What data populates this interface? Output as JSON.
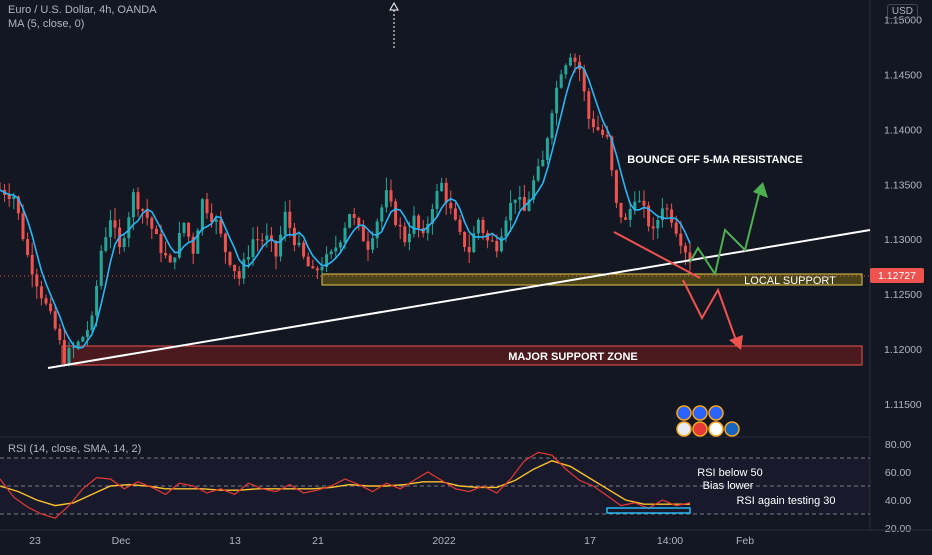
{
  "header": {
    "symbol_line": "Euro / U.S. Dollar, 4h, OANDA",
    "ma_line": "MA (5, close, 0)",
    "currency": "USD"
  },
  "rsi_header": "RSI (14, close, SMA, 14, 2)",
  "colors": {
    "bg": "#131722",
    "up": "#26a69a",
    "down": "#ef5350",
    "ma": "#29b6f6",
    "trendline": "#ffffff",
    "support_fill": "#4a1a1f",
    "support_stroke": "#ef5350",
    "local_fill": "#4a4318",
    "local_stroke": "#e6c84f",
    "rsi_line": "#e53935",
    "rsi_sma": "#fbc02d",
    "price_tag": "#ef5350",
    "arrow_up": "#4caf50",
    "arrow_down": "#ef5350"
  },
  "chart_data": [
    {
      "type": "candlestick",
      "title": "Euro / U.S. Dollar, 4h, OANDA",
      "ylim": [
        1.112,
        1.1515
      ],
      "y_ticks": [
        "1.15000",
        "1.14500",
        "1.14000",
        "1.13500",
        "1.13000",
        "1.12500",
        "1.12000",
        "1.11500"
      ],
      "x_ticks": [
        "23",
        "Dec",
        "13",
        "21",
        "2022",
        "17",
        "14:00",
        "Feb"
      ],
      "current_price": "1.12727",
      "series": [
        {
          "name": "MA (5, close, 0)",
          "style": "line"
        },
        {
          "name": "price",
          "close_path": [
            [
              0,
              1.1345
            ],
            [
              3,
              1.134
            ],
            [
              6,
              1.1285
            ],
            [
              9,
              1.125
            ],
            [
              12,
              1.1218
            ],
            [
              14,
              1.1192
            ],
            [
              17,
              1.1205
            ],
            [
              20,
              1.1225
            ],
            [
              22,
              1.129
            ],
            [
              24,
              1.132
            ],
            [
              26,
              1.129
            ],
            [
              29,
              1.134
            ],
            [
              32,
              1.132
            ],
            [
              34,
              1.13
            ],
            [
              37,
              1.1275
            ],
            [
              40,
              1.1315
            ],
            [
              42,
              1.129
            ],
            [
              44,
              1.1335
            ],
            [
              47,
              1.1315
            ],
            [
              49,
              1.129
            ],
            [
              52,
              1.1265
            ],
            [
              55,
              1.13
            ],
            [
              58,
              1.13
            ],
            [
              60,
              1.1285
            ],
            [
              62,
              1.1322
            ],
            [
              64,
              1.13
            ],
            [
              66,
              1.1282
            ],
            [
              68,
              1.1268
            ],
            [
              70,
              1.1278
            ],
            [
              72,
              1.1285
            ],
            [
              74,
              1.1302
            ],
            [
              76,
              1.1325
            ],
            [
              78,
              1.1308
            ],
            [
              80,
              1.1295
            ],
            [
              82,
              1.1318
            ],
            [
              84,
              1.134
            ],
            [
              86,
              1.1318
            ],
            [
              88,
              1.13
            ],
            [
              90,
              1.1318
            ],
            [
              92,
              1.13
            ],
            [
              94,
              1.1332
            ],
            [
              96,
              1.135
            ],
            [
              98,
              1.1325
            ],
            [
              100,
              1.1302
            ],
            [
              102,
              1.129
            ],
            [
              104,
              1.1318
            ],
            [
              106,
              1.1298
            ],
            [
              108,
              1.1295
            ],
            [
              110,
              1.1322
            ],
            [
              112,
              1.134
            ],
            [
              114,
              1.1325
            ],
            [
              116,
              1.1352
            ],
            [
              118,
              1.137
            ],
            [
              120,
              1.142
            ],
            [
              122,
              1.1455
            ],
            [
              124,
              1.147
            ],
            [
              126,
              1.1455
            ],
            [
              128,
              1.141
            ],
            [
              130,
              1.14
            ],
            [
              132,
              1.139
            ],
            [
              134,
              1.133
            ],
            [
              136,
              1.1315
            ],
            [
              138,
              1.134
            ],
            [
              140,
              1.1325
            ],
            [
              142,
              1.1305
            ],
            [
              144,
              1.1332
            ],
            [
              146,
              1.132
            ],
            [
              148,
              1.13
            ],
            [
              150,
              1.1282
            ]
          ]
        }
      ]
    },
    {
      "type": "line",
      "title": "RSI (14, close, SMA, 14, 2)",
      "ylim": [
        20,
        80
      ],
      "y_ticks": [
        "80.00",
        "60.00",
        "40.00",
        "20.00"
      ],
      "levels": [
        70,
        50,
        30
      ],
      "series": [
        {
          "name": "RSI",
          "values": [
            [
              0,
              55
            ],
            [
              3,
              42
            ],
            [
              6,
              35
            ],
            [
              9,
              30
            ],
            [
              12,
              27
            ],
            [
              15,
              36
            ],
            [
              18,
              48
            ],
            [
              21,
              56
            ],
            [
              24,
              55
            ],
            [
              27,
              48
            ],
            [
              30,
              53
            ],
            [
              33,
              49
            ],
            [
              36,
              44
            ],
            [
              39,
              52
            ],
            [
              42,
              50
            ],
            [
              45,
              45
            ],
            [
              48,
              48
            ],
            [
              51,
              44
            ],
            [
              54,
              52
            ],
            [
              57,
              48
            ],
            [
              60,
              46
            ],
            [
              63,
              51
            ],
            [
              66,
              45
            ],
            [
              69,
              47
            ],
            [
              72,
              50
            ],
            [
              75,
              55
            ],
            [
              78,
              51
            ],
            [
              81,
              46
            ],
            [
              84,
              52
            ],
            [
              87,
              48
            ],
            [
              90,
              54
            ],
            [
              93,
              60
            ],
            [
              96,
              54
            ],
            [
              99,
              48
            ],
            [
              102,
              46
            ],
            [
              105,
              50
            ],
            [
              108,
              45
            ],
            [
              111,
              55
            ],
            [
              114,
              68
            ],
            [
              117,
              74
            ],
            [
              120,
              72
            ],
            [
              123,
              62
            ],
            [
              126,
              54
            ],
            [
              129,
              50
            ],
            [
              132,
              43
            ],
            [
              135,
              36
            ],
            [
              138,
              38
            ],
            [
              141,
              34
            ],
            [
              144,
              40
            ],
            [
              147,
              36
            ],
            [
              150,
              38
            ]
          ]
        },
        {
          "name": "SMA",
          "values": [
            [
              0,
              50
            ],
            [
              4,
              46
            ],
            [
              8,
              40
            ],
            [
              12,
              36
            ],
            [
              16,
              38
            ],
            [
              20,
              44
            ],
            [
              24,
              50
            ],
            [
              28,
              51
            ],
            [
              32,
              50
            ],
            [
              36,
              48
            ],
            [
              40,
              48
            ],
            [
              44,
              48
            ],
            [
              48,
              47
            ],
            [
              52,
              47
            ],
            [
              56,
              48
            ],
            [
              60,
              48
            ],
            [
              64,
              48
            ],
            [
              68,
              48
            ],
            [
              72,
              49
            ],
            [
              76,
              51
            ],
            [
              80,
              50
            ],
            [
              84,
              50
            ],
            [
              88,
              51
            ],
            [
              92,
              53
            ],
            [
              96,
              53
            ],
            [
              100,
              50
            ],
            [
              104,
              49
            ],
            [
              108,
              49
            ],
            [
              112,
              54
            ],
            [
              116,
              62
            ],
            [
              120,
              68
            ],
            [
              124,
              64
            ],
            [
              128,
              56
            ],
            [
              132,
              48
            ],
            [
              136,
              40
            ],
            [
              140,
              37
            ],
            [
              144,
              37
            ],
            [
              150,
              37
            ]
          ]
        }
      ]
    }
  ],
  "annotations": {
    "bounce": "BOUNCE OFF 5-MA  RESISTANCE",
    "local_support": "LOCAL SUPPORT",
    "major_support": "MAJOR SUPPORT ZONE",
    "rsi_note_1": "RSI below 50",
    "rsi_note_2": "Bias lower",
    "rsi_note_3": "RSI again testing 30"
  }
}
